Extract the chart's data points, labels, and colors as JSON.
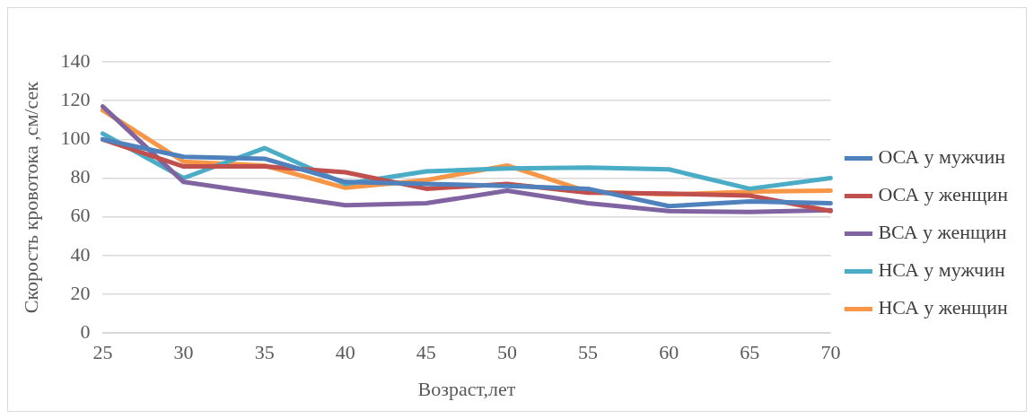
{
  "chart_data": {
    "type": "line",
    "xlabel": "Возраст,лет",
    "ylabel": "Скорость кровотока ,см/сек",
    "categories": [
      "25",
      "30",
      "35",
      "40",
      "45",
      "50",
      "55",
      "60",
      "65",
      "70"
    ],
    "series": [
      {
        "name": "ОСА у мужчин",
        "color": "#4f81bd",
        "values": [
          100,
          91,
          90,
          78,
          77,
          76,
          74.5,
          65.5,
          68,
          67
        ]
      },
      {
        "name": "ОСА у женщин",
        "color": "#c0504d",
        "values": [
          100,
          86,
          86,
          83,
          74.5,
          77,
          72.5,
          72,
          71,
          63
        ]
      },
      {
        "name": "ВСА у женщин",
        "color": "#8064a2",
        "values": [
          117,
          78,
          72,
          66,
          67,
          73.5,
          67,
          63,
          62.5,
          63.5
        ]
      },
      {
        "name": "НСА у мужчин",
        "color": "#4bacc6",
        "values": [
          103,
          80,
          95.5,
          77,
          83.5,
          85,
          85.5,
          84.5,
          74.5,
          80
        ]
      },
      {
        "name": "НСА у женщин",
        "color": "#f79646",
        "values": [
          115,
          88.5,
          86.5,
          75,
          79,
          86.5,
          73,
          71.5,
          73,
          73.5
        ]
      }
    ],
    "ylim": [
      0,
      140
    ],
    "yticks": [
      0,
      20,
      40,
      60,
      80,
      100,
      120,
      140
    ],
    "grid": "y",
    "legend": "right",
    "marker": "none",
    "line_style": "solid"
  }
}
